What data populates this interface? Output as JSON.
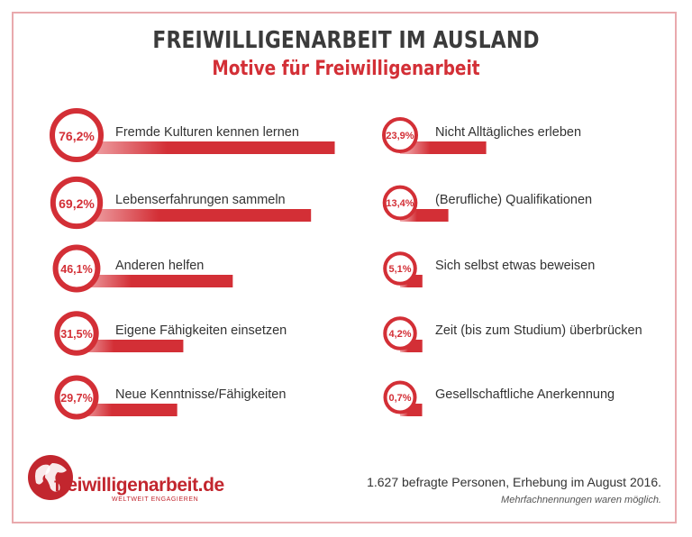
{
  "header": {
    "title": "FREIWILLIGENARBEIT IM AUSLAND",
    "subtitle": "Motive für Freiwilligenarbeit"
  },
  "chart_data": {
    "type": "bar",
    "title": "FREIWILLIGENARBEIT IM AUSLAND",
    "subtitle": "Motive für Freiwilligenarbeit",
    "unit": "%",
    "xlim": [
      0,
      100
    ],
    "accent_color": "#d32f36",
    "columns": [
      [
        {
          "label": "Fremde Kulturen kennen lernen",
          "value": 76.2,
          "display": "76,2%"
        },
        {
          "label": "Lebenserfahrungen sammeln",
          "value": 69.2,
          "display": "69,2%"
        },
        {
          "label": "Anderen helfen",
          "value": 46.1,
          "display": "46,1%"
        },
        {
          "label": "Eigene Fähigkeiten einsetzen",
          "value": 31.5,
          "display": "31,5%"
        },
        {
          "label": "Neue Kenntnisse/Fähigkeiten",
          "value": 29.7,
          "display": "29,7%"
        }
      ],
      [
        {
          "label": "Nicht Alltägliches erleben",
          "value": 23.9,
          "display": "23,9%"
        },
        {
          "label": "(Berufliche) Qualifikationen",
          "value": 13.4,
          "display": "13,4%"
        },
        {
          "label": "Sich selbst etwas beweisen",
          "value": 5.1,
          "display": "5,1%"
        },
        {
          "label": "Zeit (bis zum Studium) überbrücken",
          "value": 4.2,
          "display": "4,2%"
        },
        {
          "label": "Gesellschaftliche Anerkennung",
          "value": 0.7,
          "display": "0,7%"
        }
      ]
    ]
  },
  "logo": {
    "name": "freiwilligenarbeit.de",
    "tagline": "WELTWEIT ENGAGIEREN",
    "icon": "globe-icon"
  },
  "footer": {
    "source": "1.627 befragte Personen, Erhebung im August 2016.",
    "note": "Mehrfachnennungen waren möglich."
  }
}
